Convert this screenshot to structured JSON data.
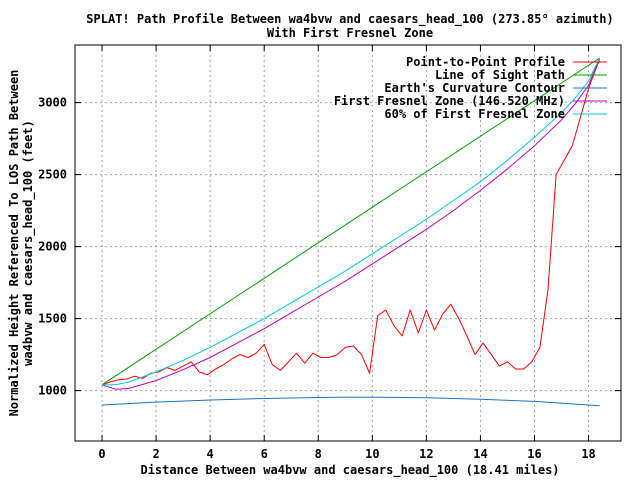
{
  "chart_data": {
    "type": "line",
    "title_line1": "SPLAT! Path Profile Between wa4bvw and caesars_head_100 (273.85° azimuth)",
    "title_line2": "With First Fresnel Zone",
    "xlabel": "Distance Between wa4bvw and caesars_head_100 (18.41 miles)",
    "ylabel_line1": "Normalized Height Referenced To LOS Path Between",
    "ylabel_line2": "wa4bvw and caesars_head_100 (feet)",
    "xlim": [
      -1,
      19.2
    ],
    "ylim": [
      650,
      3400
    ],
    "x_ticks": [
      0,
      2,
      4,
      6,
      8,
      10,
      12,
      14,
      16,
      18
    ],
    "y_ticks": [
      1000,
      1500,
      2000,
      2500,
      3000
    ],
    "grid": true,
    "legend_position": "top-right",
    "series": [
      {
        "name": "Point-to-Point Profile",
        "color": "#ff0000",
        "x": [
          0,
          0.3,
          0.6,
          0.9,
          1.2,
          1.5,
          1.8,
          2.1,
          2.4,
          2.7,
          3.0,
          3.3,
          3.6,
          3.9,
          4.2,
          4.5,
          4.8,
          5.1,
          5.4,
          5.7,
          6.0,
          6.3,
          6.6,
          6.9,
          7.2,
          7.5,
          7.8,
          8.1,
          8.4,
          8.7,
          9.0,
          9.3,
          9.6,
          9.9,
          10.2,
          10.5,
          10.8,
          11.1,
          11.4,
          11.7,
          12.0,
          12.3,
          12.6,
          12.9,
          13.2,
          13.5,
          13.8,
          14.1,
          14.4,
          14.7,
          15.0,
          15.3,
          15.6,
          15.9,
          16.2,
          16.5,
          16.8,
          17.1,
          17.4,
          17.7,
          18.0,
          18.2,
          18.41
        ],
        "y": [
          1040,
          1060,
          1075,
          1080,
          1100,
          1085,
          1120,
          1130,
          1160,
          1140,
          1170,
          1200,
          1130,
          1110,
          1150,
          1180,
          1220,
          1250,
          1230,
          1260,
          1320,
          1180,
          1140,
          1200,
          1260,
          1190,
          1260,
          1230,
          1230,
          1250,
          1300,
          1310,
          1250,
          1120,
          1520,
          1560,
          1450,
          1380,
          1560,
          1400,
          1560,
          1420,
          1530,
          1600,
          1500,
          1380,
          1250,
          1330,
          1250,
          1170,
          1200,
          1150,
          1150,
          1200,
          1300,
          1700,
          2500,
          2600,
          2700,
          2900,
          3100,
          3200,
          3300
        ]
      },
      {
        "name": "Line of Sight Path",
        "color": "#00a000",
        "x": [
          0,
          18.41
        ],
        "y": [
          1040,
          3310
        ]
      },
      {
        "name": "Earth's Curvature Contour",
        "color": "#1c74c4",
        "x": [
          0,
          2,
          4,
          6,
          8,
          9.2,
          10,
          12,
          14,
          16,
          18.41
        ],
        "y": [
          900,
          920,
          935,
          945,
          952,
          955,
          954,
          950,
          940,
          925,
          895
        ]
      },
      {
        "name": "First Fresnel Zone (146.520 MHz)",
        "color": "#c000c0",
        "x": [
          0,
          0.5,
          1,
          2,
          3,
          4,
          5,
          6,
          7,
          8,
          9,
          10,
          11,
          12,
          13,
          14,
          15,
          16,
          17,
          17.5,
          18,
          18.41
        ],
        "y": [
          1040,
          1010,
          1015,
          1070,
          1145,
          1230,
          1330,
          1430,
          1540,
          1650,
          1760,
          1880,
          2000,
          2120,
          2250,
          2390,
          2540,
          2700,
          2880,
          2990,
          3120,
          3310
        ]
      },
      {
        "name": "60% of First Fresnel Zone",
        "color": "#00c8e0",
        "x": [
          0,
          0.5,
          1,
          2,
          3,
          4,
          5,
          6,
          7,
          8,
          9,
          10,
          11,
          12,
          13,
          14,
          15,
          16,
          17,
          17.5,
          18,
          18.41
        ],
        "y": [
          1040,
          1040,
          1060,
          1130,
          1210,
          1300,
          1400,
          1500,
          1610,
          1720,
          1830,
          1950,
          2070,
          2190,
          2320,
          2450,
          2600,
          2760,
          2930,
          3030,
          3150,
          3310
        ]
      }
    ]
  }
}
